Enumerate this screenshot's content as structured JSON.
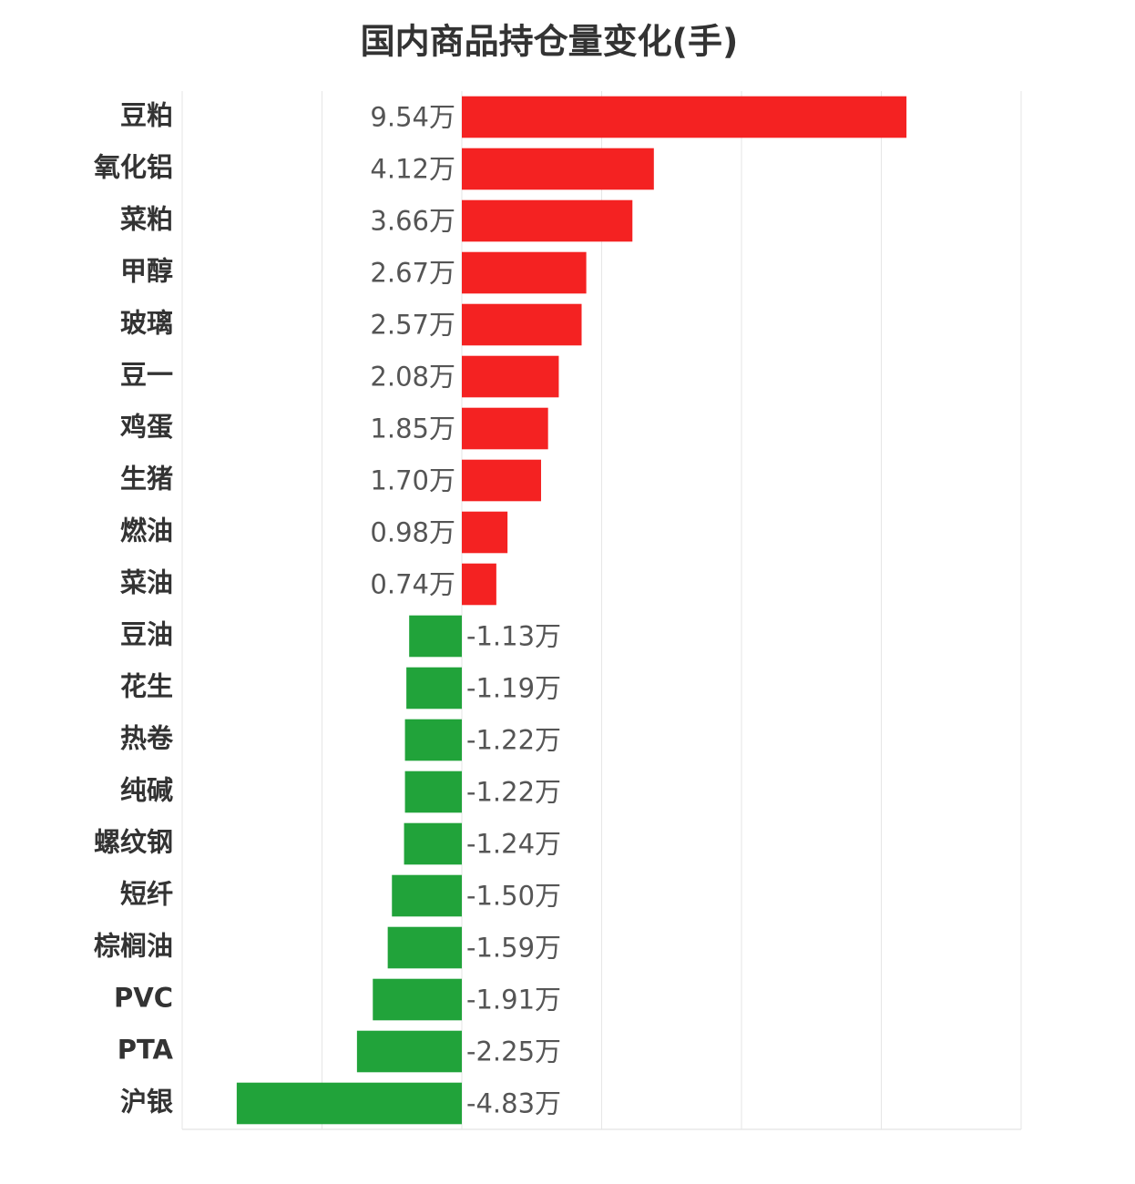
{
  "chart_data": {
    "type": "barh",
    "title": "国内商品持仓量变化(手)",
    "categories": [
      "豆粕",
      "氧化铝",
      "菜粕",
      "甲醇",
      "玻璃",
      "豆一",
      "鸡蛋",
      "生猪",
      "燃油",
      "菜油",
      "豆油",
      "花生",
      "热卷",
      "纯碱",
      "螺纹钢",
      "短纤",
      "棕榈油",
      "PVC",
      "PTA",
      "沪银"
    ],
    "values": [
      9.54,
      4.12,
      3.66,
      2.67,
      2.57,
      2.08,
      1.85,
      1.7,
      0.98,
      0.74,
      -1.13,
      -1.19,
      -1.22,
      -1.22,
      -1.24,
      -1.5,
      -1.59,
      -1.91,
      -2.25,
      -4.83
    ],
    "value_labels": [
      "9.54万",
      "4.12万",
      "3.66万",
      "2.67万",
      "2.57万",
      "2.08万",
      "1.85万",
      "1.70万",
      "0.98万",
      "0.74万",
      "-1.13万",
      "-1.19万",
      "-1.22万",
      "-1.22万",
      "-1.24万",
      "-1.50万",
      "-1.59万",
      "-1.91万",
      "-2.25万",
      "-4.83万"
    ],
    "colors": {
      "positive": "#f42222",
      "negative": "#21a33a"
    },
    "xlim": [
      -6,
      12
    ],
    "xticks": [
      -6,
      -3,
      0,
      3,
      6,
      9,
      12
    ],
    "grid": true
  }
}
